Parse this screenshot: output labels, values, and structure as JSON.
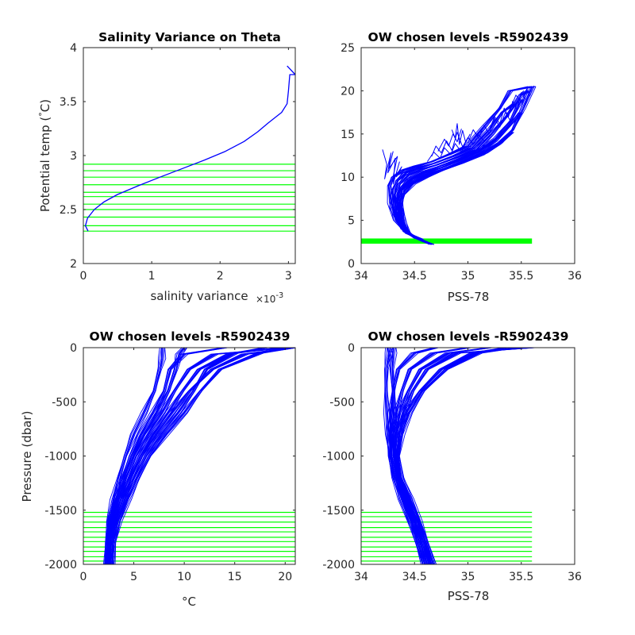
{
  "colors": {
    "profile": "#0000ff",
    "levels": "#00ff00",
    "axes": "#262626",
    "background": "#ffffff"
  },
  "chart_data": [
    {
      "id": "p1",
      "type": "line",
      "title": "Salinity Variance on Theta",
      "xlabel": "salinity variance",
      "xexponent_base": "×10",
      "xexponent_power": "-3",
      "ylabel": "Potential temp (°C)",
      "ylabel_parts": [
        "Potential temp (",
        "°",
        "C)"
      ],
      "xlim": [
        0,
        3.1
      ],
      "ylim": [
        2,
        4
      ],
      "xticks": [
        0,
        1,
        2,
        3
      ],
      "yticks": [
        2,
        2.5,
        3,
        3.5,
        4
      ],
      "series": [
        {
          "x": [
            0.07,
            0.03,
            0.06,
            0.16,
            0.3,
            0.5,
            0.8,
            1.12,
            1.45,
            1.78,
            2.08,
            2.35,
            2.55,
            2.7,
            2.8,
            2.9,
            2.98,
            3.0,
            3.02,
            3.1,
            2.98
          ],
          "y": [
            2.3,
            2.35,
            2.42,
            2.5,
            2.57,
            2.64,
            2.72,
            2.8,
            2.88,
            2.96,
            3.04,
            3.13,
            3.22,
            3.3,
            3.35,
            3.4,
            3.48,
            3.6,
            3.75,
            3.75,
            3.83
          ]
        }
      ],
      "hlines": [
        2.3,
        2.35,
        2.43,
        2.5,
        2.55,
        2.62,
        2.66,
        2.73,
        2.8,
        2.86,
        2.92
      ]
    },
    {
      "id": "p2",
      "type": "line",
      "title": "OW chosen levels -R5902439",
      "xlabel": "PSS-78",
      "ylabel": "",
      "xlim": [
        34,
        36
      ],
      "ylim": [
        0,
        25
      ],
      "xticks": [
        34,
        34.5,
        35,
        35.5,
        36
      ],
      "yticks": [
        0,
        5,
        10,
        15,
        20,
        25
      ],
      "band": {
        "y": [
          2.3,
          2.9
        ],
        "x": [
          34,
          35.6
        ]
      },
      "series": [
        {
          "x": [
            34.66,
            34.55,
            34.44,
            34.38,
            34.37,
            34.4,
            34.5,
            34.62,
            34.78,
            34.95,
            35.15,
            35.3,
            35.42,
            35.52,
            35.6
          ],
          "y": [
            2.2,
            2.8,
            3.5,
            5,
            7,
            8.5,
            9.5,
            10.3,
            11,
            11.8,
            12.8,
            14,
            15.5,
            18,
            20.5
          ]
        },
        {
          "x": [
            34.62,
            34.5,
            34.4,
            34.35,
            34.34,
            34.38,
            34.46,
            34.58,
            34.72,
            34.9,
            35.1,
            35.26,
            35.4,
            35.5
          ],
          "y": [
            2.4,
            3.0,
            4.0,
            5.5,
            7.5,
            8.8,
            9.8,
            10.6,
            11.2,
            12,
            13,
            14.5,
            16.5,
            19
          ]
        },
        {
          "x": [
            34.6,
            34.48,
            34.38,
            34.33,
            34.32,
            34.36,
            34.44,
            34.56,
            34.7,
            34.88,
            35.08,
            35.22,
            35.36,
            35.5,
            35.56
          ],
          "y": [
            2.5,
            3.2,
            4.5,
            6,
            8,
            9.2,
            10.2,
            10.9,
            11.4,
            12.2,
            13.2,
            15,
            17,
            19.5,
            20
          ]
        },
        {
          "x": [
            34.58,
            34.45,
            34.36,
            34.3,
            34.3,
            34.34,
            34.42,
            34.54,
            34.68,
            34.86,
            35.04,
            35.2,
            35.32,
            35.44
          ],
          "y": [
            2.6,
            3.4,
            4.8,
            6.5,
            8.5,
            9.6,
            10.5,
            11.1,
            11.6,
            12.4,
            13.4,
            15.5,
            17.5,
            18.5
          ]
        },
        {
          "x": [
            34.56,
            34.42,
            34.33,
            34.28,
            34.26,
            34.3,
            34.4,
            34.52,
            34.66,
            34.82,
            35.0,
            35.16,
            35.3,
            35.4,
            35.6
          ],
          "y": [
            2.8,
            3.6,
            5.0,
            7.0,
            9.0,
            10.0,
            10.8,
            11.3,
            11.8,
            12.6,
            13.6,
            16,
            18,
            20,
            20.5
          ]
        },
        {
          "x": [
            34.6,
            34.5,
            34.42,
            34.38,
            34.36,
            34.4,
            34.48,
            34.6,
            34.76,
            34.94,
            35.12,
            35.28,
            35.42
          ],
          "y": [
            2.5,
            3.0,
            3.8,
            5.2,
            6.8,
            8.0,
            9.2,
            10.0,
            10.8,
            11.6,
            12.6,
            13.8,
            15.2
          ]
        },
        {
          "x": [
            34.64,
            34.52,
            34.42,
            34.36,
            34.35,
            34.38,
            34.47,
            34.6,
            34.75,
            34.92,
            35.1,
            35.25,
            35.38,
            35.5
          ],
          "y": [
            2.3,
            2.9,
            3.7,
            5.2,
            7.2,
            8.6,
            9.7,
            10.5,
            11.1,
            11.9,
            12.9,
            14.2,
            15.8,
            17.5
          ]
        }
      ],
      "scribbles": [
        {
          "x": [
            34.2,
            34.24,
            34.22,
            34.28,
            34.25,
            34.32,
            34.3,
            34.36
          ],
          "y": [
            13.2,
            11.5,
            9.8,
            12.8,
            10.5,
            12.2,
            9.2,
            11.8
          ]
        },
        {
          "x": [
            34.3,
            34.26,
            34.34,
            34.29,
            34.38,
            34.33
          ],
          "y": [
            13.0,
            11.0,
            12.4,
            9.5,
            11.2,
            10.0
          ]
        },
        {
          "x": [
            34.66,
            34.7,
            34.75,
            34.8,
            34.85,
            34.9,
            34.95,
            35.0,
            35.05,
            35.1,
            35.15
          ],
          "y": [
            12.4,
            13.6,
            12.8,
            14.2,
            13.1,
            15.2,
            13.5,
            14.6,
            13.8,
            14.9,
            14.2
          ]
        },
        {
          "x": [
            34.62,
            34.68,
            34.74,
            34.78,
            34.84,
            34.88,
            34.94,
            34.98
          ],
          "y": [
            11.8,
            12.9,
            12.2,
            13.4,
            12.6,
            13.9,
            12.9,
            14.1
          ]
        },
        {
          "x": [
            34.85,
            34.88,
            34.9,
            34.92,
            34.95,
            34.98,
            35.02
          ],
          "y": [
            15.5,
            14.5,
            16.2,
            13.8,
            15.4,
            14.0,
            15.0
          ]
        },
        {
          "x": [
            35.0,
            35.05,
            35.1,
            35.15,
            35.2,
            35.25,
            35.3,
            35.35,
            35.4
          ],
          "y": [
            14.0,
            15.5,
            14.5,
            16.0,
            15.0,
            16.8,
            15.8,
            17.5,
            16.5
          ]
        },
        {
          "x": [
            35.2,
            35.25,
            35.3,
            35.34,
            35.38,
            35.42,
            35.46,
            35.5,
            35.54
          ],
          "y": [
            15.5,
            17.0,
            16.2,
            18.0,
            17.0,
            18.8,
            17.8,
            19.8,
            19.0
          ]
        },
        {
          "x": [
            35.4,
            35.45,
            35.5,
            35.55,
            35.58,
            35.62
          ],
          "y": [
            18.0,
            19.5,
            18.6,
            20.2,
            19.4,
            20.6
          ]
        },
        {
          "x": [
            34.72,
            34.78,
            34.82,
            34.86,
            34.9,
            34.94
          ],
          "y": [
            13.0,
            14.4,
            13.6,
            15.0,
            14.1,
            15.6
          ]
        }
      ]
    },
    {
      "id": "p3",
      "type": "line",
      "title": "OW chosen levels -R5902439",
      "xlabel": "°C",
      "ylabel": "Pressure (dbar)",
      "xlim": [
        0,
        21
      ],
      "ylim": [
        -2000,
        0
      ],
      "xticks": [
        0,
        5,
        10,
        15,
        20
      ],
      "yticks": [
        0,
        -500,
        -1000,
        -1500,
        -2000
      ],
      "ytick_labels": [
        "0",
        "-500",
        "-1000",
        "-1500",
        "-2000"
      ],
      "hlines": [
        -1520,
        -1560,
        -1610,
        -1660,
        -1700,
        -1750,
        -1790,
        -1840,
        -1880,
        -1930,
        -1970
      ],
      "series": [
        {
          "x": [
            2.2,
            2.3,
            2.6,
            3.0,
            3.5,
            4.2,
            5.0,
            6.0,
            7.0,
            7.6,
            7.8,
            7.8
          ],
          "y": [
            -2000,
            -1800,
            -1600,
            -1400,
            -1200,
            -1000,
            -800,
            -600,
            -400,
            -200,
            -100,
            0
          ]
        },
        {
          "x": [
            2.4,
            2.5,
            2.9,
            3.5,
            4.3,
            5.2,
            6.4,
            7.8,
            9.0,
            10.5,
            13,
            20.5
          ],
          "y": [
            -2000,
            -1800,
            -1600,
            -1400,
            -1200,
            -1000,
            -800,
            -600,
            -400,
            -200,
            -60,
            0
          ]
        },
        {
          "x": [
            2.6,
            2.8,
            3.2,
            3.9,
            4.8,
            5.8,
            7.2,
            8.8,
            10.5,
            12.8,
            16.0,
            20.8
          ],
          "y": [
            -2000,
            -1800,
            -1600,
            -1400,
            -1200,
            -1000,
            -800,
            -600,
            -400,
            -200,
            -60,
            0
          ]
        },
        {
          "x": [
            2.9,
            3.1,
            3.6,
            4.4,
            5.4,
            6.6,
            8.2,
            10.0,
            11.6,
            13.6,
            17.5,
            20.9
          ],
          "y": [
            -2000,
            -1800,
            -1600,
            -1400,
            -1200,
            -1000,
            -800,
            -600,
            -400,
            -200,
            -50,
            0
          ]
        },
        {
          "x": [
            2.3,
            2.4,
            2.7,
            3.2,
            3.9,
            4.7,
            5.7,
            6.9,
            8.0,
            8.6,
            10.0,
            14.0
          ],
          "y": [
            -2000,
            -1800,
            -1600,
            -1400,
            -1200,
            -1000,
            -800,
            -600,
            -400,
            -200,
            -60,
            0
          ]
        },
        {
          "x": [
            2.5,
            2.6,
            3.0,
            3.7,
            4.6,
            5.6,
            6.9,
            8.4,
            9.8,
            11.5,
            14.5,
            18.0
          ],
          "y": [
            -2000,
            -1800,
            -1600,
            -1400,
            -1200,
            -1000,
            -800,
            -600,
            -400,
            -200,
            -60,
            0
          ]
        },
        {
          "x": [
            2.7,
            2.9,
            3.4,
            4.1,
            5.1,
            6.2,
            7.7,
            9.4,
            10.9,
            12.2,
            15.0,
            19.5
          ],
          "y": [
            -2000,
            -1800,
            -1600,
            -1400,
            -1200,
            -1000,
            -800,
            -600,
            -400,
            -200,
            -50,
            0
          ]
        },
        {
          "x": [
            2.3,
            2.4,
            2.8,
            3.3,
            4.1,
            4.9,
            6.0,
            7.3,
            8.4,
            9.2,
            9.5,
            10.0
          ],
          "y": [
            -2000,
            -1800,
            -1600,
            -1400,
            -1200,
            -1000,
            -800,
            -600,
            -400,
            -200,
            -60,
            0
          ]
        }
      ]
    },
    {
      "id": "p4",
      "type": "line",
      "title": "OW chosen levels -R5902439",
      "xlabel": "PSS-78",
      "ylabel": "",
      "xlim": [
        34,
        36
      ],
      "ylim": [
        -2000,
        0
      ],
      "xticks": [
        34,
        34.5,
        35,
        35.5,
        36
      ],
      "yticks": [
        0,
        -500,
        -1000,
        -1500,
        -2000
      ],
      "ytick_labels": [
        "0",
        "-500",
        "-1000",
        "-1500",
        "-2000"
      ],
      "hlines": [
        -1520,
        -1560,
        -1610,
        -1660,
        -1700,
        -1750,
        -1790,
        -1840,
        -1880,
        -1930,
        -1970
      ],
      "hline_x": [
        34,
        35.6
      ],
      "series": [
        {
          "x": [
            34.62,
            34.56,
            34.5,
            34.42,
            34.34,
            34.3,
            34.3,
            34.3,
            34.3,
            34.29,
            34.3,
            34.3
          ],
          "y": [
            -2000,
            -1800,
            -1600,
            -1400,
            -1200,
            -1000,
            -800,
            -600,
            -400,
            -200,
            -50,
            0
          ]
        },
        {
          "x": [
            34.68,
            34.62,
            34.55,
            34.46,
            34.38,
            34.35,
            34.38,
            34.45,
            34.58,
            34.8,
            35.1,
            35.45
          ],
          "y": [
            -2000,
            -1800,
            -1600,
            -1400,
            -1200,
            -1000,
            -800,
            -600,
            -400,
            -200,
            -50,
            0
          ]
        },
        {
          "x": [
            34.58,
            34.52,
            34.46,
            34.38,
            34.3,
            34.27,
            34.27,
            34.28,
            34.3,
            34.35,
            34.5,
            34.7
          ],
          "y": [
            -2000,
            -1800,
            -1600,
            -1400,
            -1200,
            -1000,
            -800,
            -600,
            -400,
            -200,
            -50,
            0
          ]
        },
        {
          "x": [
            34.65,
            34.6,
            34.53,
            34.44,
            34.36,
            34.33,
            34.35,
            34.42,
            34.55,
            34.75,
            35.05,
            35.35
          ],
          "y": [
            -2000,
            -1800,
            -1600,
            -1400,
            -1200,
            -1000,
            -800,
            -600,
            -400,
            -200,
            -50,
            0
          ]
        },
        {
          "x": [
            34.6,
            34.54,
            34.47,
            34.39,
            34.32,
            34.28,
            34.26,
            34.24,
            34.23,
            34.24,
            34.26,
            34.25
          ],
          "y": [
            -2000,
            -1800,
            -1600,
            -1400,
            -1200,
            -1000,
            -800,
            -600,
            -400,
            -200,
            -50,
            0
          ]
        },
        {
          "x": [
            34.66,
            34.6,
            34.52,
            34.43,
            34.36,
            34.34,
            34.36,
            34.4,
            34.48,
            34.62,
            34.9,
            35.6
          ],
          "y": [
            -2000,
            -1800,
            -1600,
            -1400,
            -1200,
            -1000,
            -800,
            -600,
            -400,
            -200,
            -50,
            0
          ]
        },
        {
          "x": [
            34.62,
            34.56,
            34.49,
            34.41,
            34.34,
            34.3,
            34.31,
            34.33,
            34.38,
            34.46,
            34.68,
            35.0
          ],
          "y": [
            -2000,
            -1800,
            -1600,
            -1400,
            -1200,
            -1000,
            -800,
            -600,
            -400,
            -200,
            -50,
            0
          ]
        },
        {
          "x": [
            34.64,
            34.58,
            34.5,
            34.42,
            34.35,
            34.32,
            34.32,
            34.36,
            34.44,
            34.56,
            34.82,
            35.2
          ],
          "y": [
            -2000,
            -1800,
            -1600,
            -1400,
            -1200,
            -1000,
            -800,
            -600,
            -400,
            -200,
            -50,
            0
          ]
        }
      ]
    }
  ]
}
